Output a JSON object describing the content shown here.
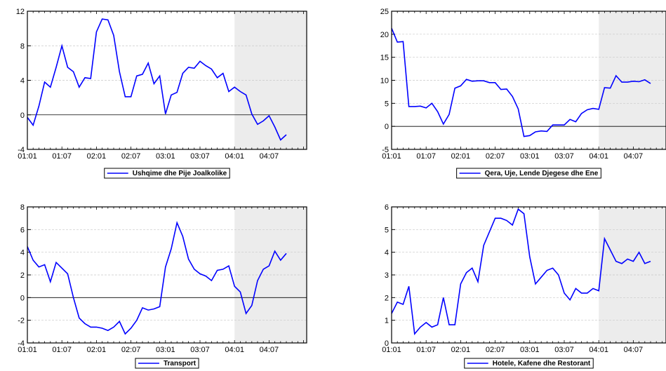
{
  "chart_data": [
    {
      "type": "line",
      "series": [
        {
          "name": "Ushqime dhe Pije Joalkolike",
          "values": [
            -0.3,
            -1.2,
            1.0,
            3.8,
            3.2,
            5.5,
            8.0,
            5.5,
            5.0,
            3.2,
            4.3,
            4.2,
            9.6,
            11.1,
            11.0,
            9.2,
            5.0,
            2.1,
            2.1,
            4.5,
            4.7,
            6.0,
            3.6,
            4.5,
            0.1,
            2.3,
            2.6,
            4.8,
            5.5,
            5.4,
            6.2,
            5.7,
            5.3,
            4.3,
            4.8,
            2.7,
            3.2,
            2.7,
            2.3,
            0.1,
            -1.1,
            -0.7,
            -0.1,
            -1.4,
            -2.9,
            -2.3
          ],
          "color": "#0000ff"
        }
      ],
      "x_ticks": [
        "01:01",
        "01:07",
        "02:01",
        "02:07",
        "03:01",
        "03:07",
        "04:01",
        "04:07"
      ],
      "y_ticks": [
        "-4",
        "0",
        "4",
        "8",
        "12"
      ],
      "ylim": [
        -4,
        12
      ],
      "shade_from_period": "04:01",
      "grid": true,
      "legend": "bottom-center"
    },
    {
      "type": "line",
      "series": [
        {
          "name": "Qera, Uje, Lende Djegese dhe Ene",
          "values": [
            21.3,
            18.3,
            18.4,
            4.3,
            4.3,
            4.4,
            4.0,
            5.0,
            3.2,
            0.5,
            2.6,
            8.3,
            8.8,
            10.2,
            9.8,
            9.9,
            9.9,
            9.5,
            9.5,
            8.0,
            8.1,
            6.5,
            3.8,
            -2.2,
            -2.0,
            -1.2,
            -1.0,
            -1.1,
            0.3,
            0.3,
            0.3,
            1.5,
            1.0,
            2.8,
            3.6,
            3.9,
            3.7,
            8.4,
            8.3,
            11.0,
            9.6,
            9.6,
            9.8,
            9.7,
            10.1,
            9.3
          ],
          "color": "#0000ff"
        }
      ],
      "x_ticks": [
        "01:01",
        "01:07",
        "02:01",
        "02:07",
        "03:01",
        "03:07",
        "04:01",
        "04:07"
      ],
      "y_ticks": [
        "-5",
        "0",
        "5",
        "10",
        "15",
        "20",
        "25"
      ],
      "ylim": [
        -5,
        25
      ],
      "shade_from_period": "04:01",
      "grid": true,
      "legend": "bottom-center"
    },
    {
      "type": "line",
      "series": [
        {
          "name": "Transport",
          "values": [
            4.5,
            3.3,
            2.7,
            2.9,
            1.4,
            3.1,
            2.6,
            2.1,
            0.0,
            -1.8,
            -2.3,
            -2.6,
            -2.6,
            -2.7,
            -2.9,
            -2.6,
            -2.1,
            -3.2,
            -2.7,
            -2.0,
            -0.9,
            -1.1,
            -1.0,
            -0.8,
            2.7,
            4.3,
            6.6,
            5.4,
            3.4,
            2.5,
            2.1,
            1.9,
            1.5,
            2.4,
            2.5,
            2.8,
            1.0,
            0.5,
            -1.4,
            -0.7,
            1.5,
            2.5,
            2.8,
            4.1,
            3.3,
            3.9
          ],
          "color": "#0000ff"
        }
      ],
      "x_ticks": [
        "01:01",
        "01:07",
        "02:01",
        "02:07",
        "03:01",
        "03:07",
        "04:01",
        "04:07"
      ],
      "y_ticks": [
        "-4",
        "-2",
        "0",
        "2",
        "4",
        "6",
        "8"
      ],
      "ylim": [
        -4,
        8
      ],
      "shade_from_period": "04:01",
      "grid": true,
      "legend": "bottom-center"
    },
    {
      "type": "line",
      "series": [
        {
          "name": "Hotele, Kafene dhe Restorant",
          "values": [
            1.3,
            1.8,
            1.7,
            2.5,
            0.4,
            0.7,
            0.9,
            0.7,
            0.8,
            2.0,
            0.8,
            0.8,
            2.6,
            3.1,
            3.3,
            2.7,
            4.3,
            4.9,
            5.5,
            5.5,
            5.4,
            5.2,
            5.9,
            5.7,
            3.8,
            2.6,
            2.9,
            3.2,
            3.3,
            3.0,
            2.2,
            1.9,
            2.4,
            2.2,
            2.2,
            2.4,
            2.3,
            4.6,
            4.1,
            3.6,
            3.5,
            3.7,
            3.6,
            4.0,
            3.5,
            3.6
          ],
          "color": "#0000ff"
        }
      ],
      "x_ticks": [
        "01:01",
        "01:07",
        "02:01",
        "02:07",
        "03:01",
        "03:07",
        "04:01",
        "04:07"
      ],
      "y_ticks": [
        "0",
        "1",
        "2",
        "3",
        "4",
        "5",
        "6"
      ],
      "ylim": [
        0,
        6
      ],
      "shade_from_period": "04:01",
      "grid": true,
      "legend": "bottom-center"
    }
  ]
}
